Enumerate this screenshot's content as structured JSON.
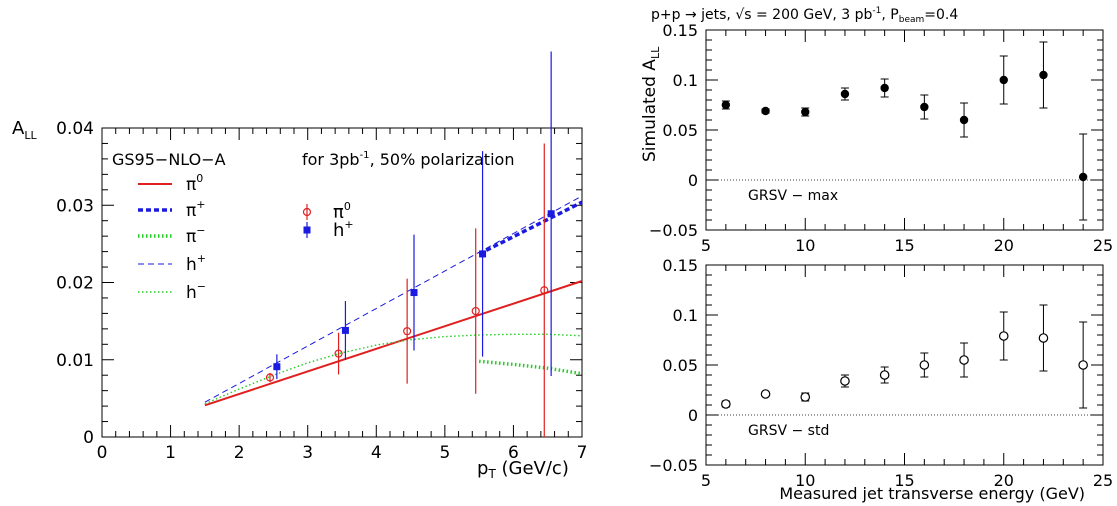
{
  "chart_data": [
    {
      "type": "scatter",
      "ylabel_main": "A",
      "ylabel_sub": "LL",
      "xlabel_main": "p",
      "xlabel_sub": "T",
      "xlabel_unit": " (GeV/c)",
      "xlim": [
        0,
        7
      ],
      "ylim": [
        0,
        0.04
      ],
      "xticks": [
        0,
        1,
        2,
        3,
        4,
        5,
        6,
        7
      ],
      "yticks": [
        0,
        0.01,
        0.02,
        0.03,
        0.04
      ],
      "ytick_labels": [
        "0",
        "0.01",
        "0.02",
        "0.03",
        "0.04"
      ],
      "annotations": {
        "model": "GS95−NLO−A",
        "condition": "for 3pb",
        "condition_sup": "-1",
        "condition_tail": ", 50% polarization"
      },
      "legend_lines": [
        {
          "base": "π",
          "sup": "0",
          "color": "#e02020",
          "style": "solid",
          "width": 2
        },
        {
          "base": "π",
          "sup": "+",
          "color": "#1a1ae0",
          "style": "dense-dash",
          "width": 3.5
        },
        {
          "base": "π",
          "sup": "−",
          "color": "#22cc22",
          "style": "dot",
          "width": 3.5
        },
        {
          "base": "h",
          "sup": "+",
          "color": "#1a1ae0",
          "style": "dash",
          "width": 1
        },
        {
          "base": "h",
          "sup": "−",
          "color": "#22cc22",
          "style": "dot",
          "width": 1.4
        }
      ],
      "legend_points": [
        {
          "base": "π",
          "sup": "0",
          "color": "#e02020",
          "marker": "open-circle"
        },
        {
          "base": "h",
          "sup": "+",
          "color": "#1a1ae0",
          "marker": "filled-square"
        }
      ],
      "curves": [
        {
          "label": "pi0",
          "color": "#e02020",
          "style": "solid",
          "width": 2,
          "x": [
            1.5,
            7.0
          ],
          "y": [
            0.0041,
            0.0202
          ]
        },
        {
          "label": "pi+",
          "color": "#1a1ae0",
          "style": "dense-dash",
          "width": 3.5,
          "x": [
            5.5,
            7.0
          ],
          "y": [
            0.0237,
            0.0304
          ]
        },
        {
          "label": "pi-",
          "color": "#22cc22",
          "style": "dot",
          "width": 3.5,
          "x": [
            5.5,
            6.0,
            6.5,
            7.0
          ],
          "y": [
            0.0098,
            0.0094,
            0.0089,
            0.0082
          ]
        },
        {
          "label": "h+",
          "color": "#1a1ae0",
          "style": "dash",
          "width": 1,
          "x": [
            1.5,
            7.0
          ],
          "y": [
            0.0045,
            0.0312
          ]
        },
        {
          "label": "h-",
          "color": "#22cc22",
          "style": "dot",
          "width": 1.4,
          "x": [
            1.5,
            2.0,
            2.5,
            3.0,
            3.5,
            4.0,
            4.5,
            5.0,
            5.5,
            6.0,
            6.5,
            7.0
          ],
          "y": [
            0.0043,
            0.0062,
            0.008,
            0.0096,
            0.0109,
            0.0119,
            0.0126,
            0.013,
            0.0132,
            0.0133,
            0.0133,
            0.0131
          ]
        }
      ],
      "series": [
        {
          "label": "pi0 points",
          "color": "#e02020",
          "marker": "open-circle",
          "x": [
            2.45,
            3.45,
            4.45,
            5.45,
            6.45
          ],
          "y": [
            0.0077,
            0.0108,
            0.0137,
            0.0163,
            0.019
          ],
          "err": [
            0.0006,
            0.0027,
            0.0068,
            0.0107,
            0.019
          ]
        },
        {
          "label": "h+ points",
          "color": "#1a1ae0",
          "marker": "filled-square",
          "x": [
            2.55,
            3.55,
            4.55,
            5.55,
            6.55
          ],
          "y": [
            0.0091,
            0.0138,
            0.0187,
            0.0237,
            0.0289
          ],
          "err": [
            0.0016,
            0.0038,
            0.0075,
            0.0133,
            0.021
          ]
        }
      ]
    },
    {
      "type": "scatter",
      "title_parts": {
        "pre": "p+p → jets, √s = 200 GeV, 3 pb",
        "sup": "-1",
        "mid": ", P",
        "sub": "beam",
        "post": "=0.4"
      },
      "ylabel_main": "Simulated A",
      "ylabel_sub": "LL",
      "label": "GRSV − max",
      "xlim": [
        5,
        25
      ],
      "ylim": [
        -0.05,
        0.15
      ],
      "xticks": [
        5,
        10,
        15,
        20,
        25
      ],
      "yticks": [
        -0.05,
        0,
        0.05,
        0.1,
        0.15
      ],
      "ytick_labels": [
        "−0.05",
        "0",
        "0.05",
        "0.1",
        "0.15"
      ],
      "marker": "filled-circle",
      "x": [
        6,
        8,
        10,
        12,
        14,
        16,
        18,
        20,
        22,
        24
      ],
      "y": [
        0.075,
        0.069,
        0.068,
        0.086,
        0.092,
        0.073,
        0.06,
        0.1,
        0.105,
        0.003
      ],
      "err": [
        0.004,
        0.002,
        0.004,
        0.006,
        0.009,
        0.012,
        0.017,
        0.024,
        0.033,
        0.043
      ]
    },
    {
      "type": "scatter",
      "xlabel": "Measured jet transverse energy (GeV)",
      "label": "GRSV − std",
      "xlim": [
        5,
        25
      ],
      "ylim": [
        -0.05,
        0.15
      ],
      "xticks": [
        5,
        10,
        15,
        20,
        25
      ],
      "yticks": [
        -0.05,
        0,
        0.05,
        0.1,
        0.15
      ],
      "ytick_labels": [
        "−0.05",
        "0",
        "0.05",
        "0.1",
        "0.15"
      ],
      "marker": "open-circle",
      "x": [
        6,
        8,
        10,
        12,
        14,
        16,
        18,
        20,
        22,
        24
      ],
      "y": [
        0.011,
        0.021,
        0.018,
        0.034,
        0.04,
        0.05,
        0.055,
        0.079,
        0.077,
        0.05
      ],
      "err": [
        0.003,
        0.002,
        0.004,
        0.006,
        0.008,
        0.012,
        0.017,
        0.024,
        0.033,
        0.043
      ]
    }
  ]
}
